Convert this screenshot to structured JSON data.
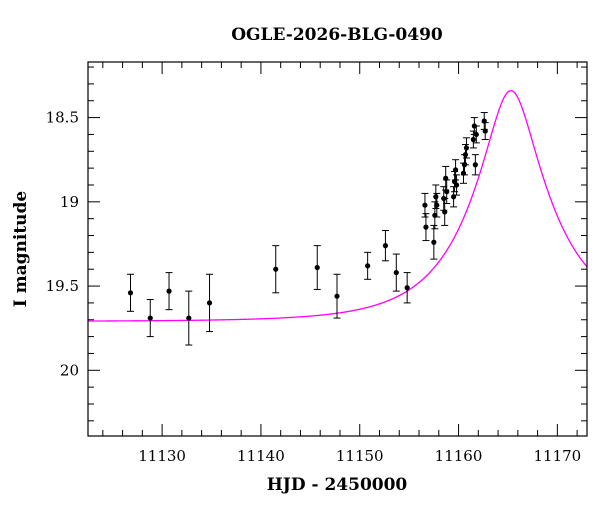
{
  "chart_data": {
    "type": "scatter",
    "title": "OGLE-2026-BLG-0490",
    "xlabel": "HJD - 2450000",
    "ylabel": "I magnitude",
    "xlim": [
      11122.5,
      11173
    ],
    "ylim": [
      20.39,
      18.17
    ],
    "y_inverted": true,
    "xticks": [
      11130,
      11140,
      11150,
      11160,
      11170
    ],
    "xtick_labels": [
      "11130",
      "11140",
      "11150",
      "11160",
      "11170"
    ],
    "yticks": [
      18.5,
      19,
      19.5,
      20
    ],
    "ytick_labels": [
      "18.5",
      "19",
      "19.5",
      "20"
    ],
    "model_color": "#ff00ff",
    "point_color": "#000000",
    "model": {
      "t0": 11165.3,
      "peak_mag": 18.34,
      "baseline_mag": 19.71,
      "t_e": 8.0,
      "u0": 0.3
    },
    "points": [
      {
        "x": 11126.8,
        "y": 19.54,
        "err": 0.11
      },
      {
        "x": 11128.8,
        "y": 19.69,
        "err": 0.11
      },
      {
        "x": 11130.7,
        "y": 19.53,
        "err": 0.11
      },
      {
        "x": 11132.7,
        "y": 19.69,
        "err": 0.16
      },
      {
        "x": 11134.8,
        "y": 19.6,
        "err": 0.17
      },
      {
        "x": 11141.5,
        "y": 19.4,
        "err": 0.14
      },
      {
        "x": 11145.7,
        "y": 19.39,
        "err": 0.13
      },
      {
        "x": 11147.7,
        "y": 19.56,
        "err": 0.13
      },
      {
        "x": 11150.8,
        "y": 19.38,
        "err": 0.08
      },
      {
        "x": 11152.6,
        "y": 19.26,
        "err": 0.09
      },
      {
        "x": 11153.7,
        "y": 19.42,
        "err": 0.11
      },
      {
        "x": 11154.8,
        "y": 19.51,
        "err": 0.09
      },
      {
        "x": 11156.6,
        "y": 19.02,
        "err": 0.07
      },
      {
        "x": 11156.7,
        "y": 19.15,
        "err": 0.08
      },
      {
        "x": 11157.5,
        "y": 19.24,
        "err": 0.1
      },
      {
        "x": 11157.6,
        "y": 19.08,
        "err": 0.08
      },
      {
        "x": 11157.7,
        "y": 18.97,
        "err": 0.07
      },
      {
        "x": 11157.8,
        "y": 19.02,
        "err": 0.07
      },
      {
        "x": 11158.5,
        "y": 18.98,
        "err": 0.07
      },
      {
        "x": 11158.6,
        "y": 19.06,
        "err": 0.08
      },
      {
        "x": 11158.7,
        "y": 18.86,
        "err": 0.07
      },
      {
        "x": 11158.8,
        "y": 18.94,
        "err": 0.07
      },
      {
        "x": 11159.5,
        "y": 18.97,
        "err": 0.06
      },
      {
        "x": 11159.6,
        "y": 18.88,
        "err": 0.06
      },
      {
        "x": 11159.7,
        "y": 18.81,
        "err": 0.06
      },
      {
        "x": 11159.8,
        "y": 18.9,
        "err": 0.06
      },
      {
        "x": 11160.5,
        "y": 18.83,
        "err": 0.06
      },
      {
        "x": 11160.6,
        "y": 18.78,
        "err": 0.06
      },
      {
        "x": 11160.7,
        "y": 18.72,
        "err": 0.06
      },
      {
        "x": 11160.8,
        "y": 18.68,
        "err": 0.06
      },
      {
        "x": 11161.5,
        "y": 18.63,
        "err": 0.05
      },
      {
        "x": 11161.6,
        "y": 18.55,
        "err": 0.05
      },
      {
        "x": 11161.7,
        "y": 18.78,
        "err": 0.06
      },
      {
        "x": 11161.8,
        "y": 18.6,
        "err": 0.05
      },
      {
        "x": 11162.6,
        "y": 18.52,
        "err": 0.05
      },
      {
        "x": 11162.7,
        "y": 18.58,
        "err": 0.05
      }
    ]
  }
}
